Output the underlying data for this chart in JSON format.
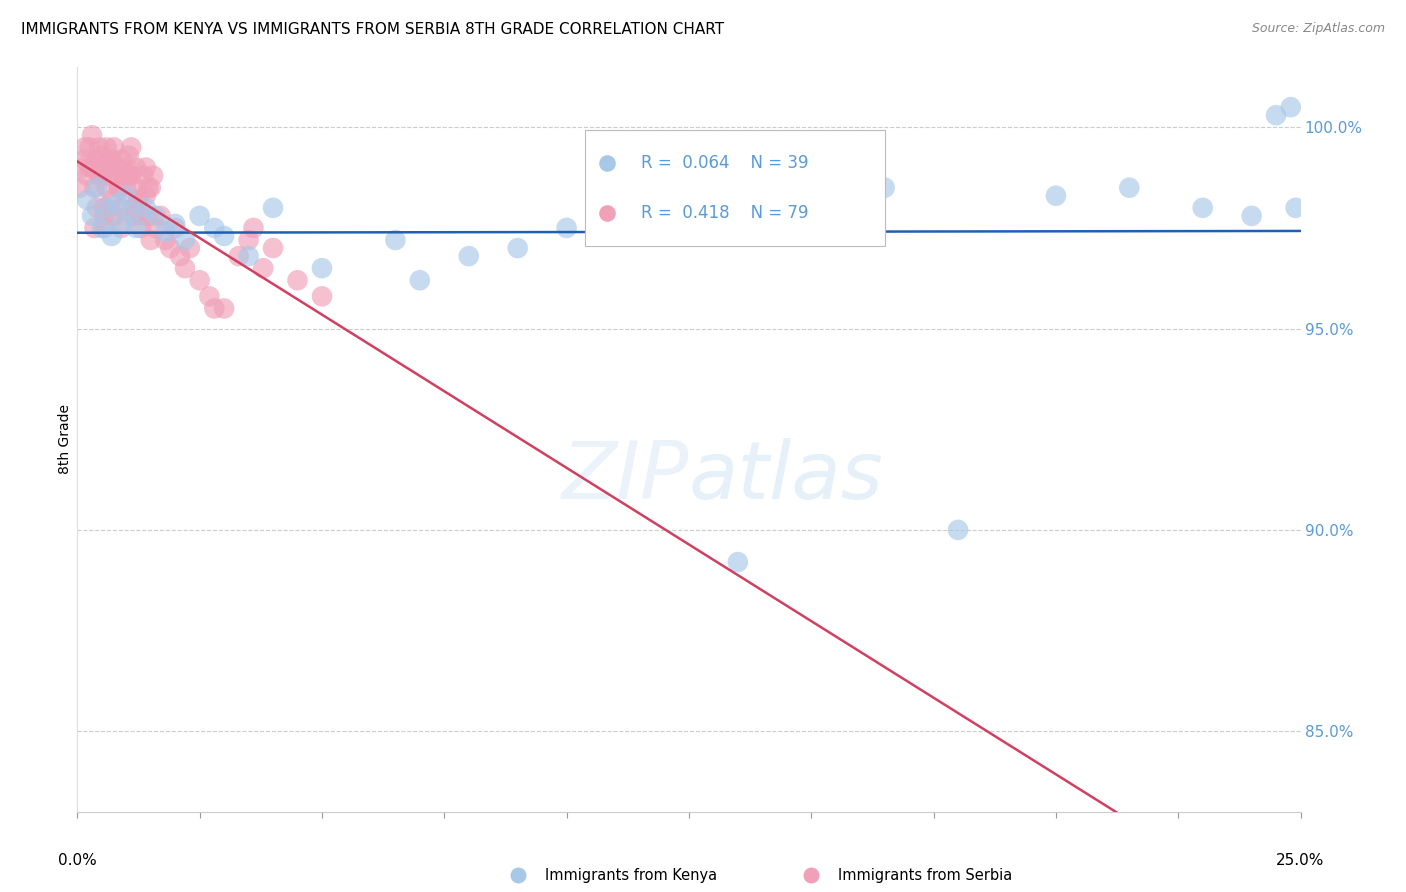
{
  "title": "IMMIGRANTS FROM KENYA VS IMMIGRANTS FROM SERBIA 8TH GRADE CORRELATION CHART",
  "source": "Source: ZipAtlas.com",
  "ylabel": "8th Grade",
  "yticks": [
    85.0,
    90.0,
    95.0,
    100.0
  ],
  "ytick_labels": [
    "85.0%",
    "90.0%",
    "95.0%",
    "100.0%"
  ],
  "xlim": [
    0.0,
    25.0
  ],
  "ylim": [
    83.0,
    101.5
  ],
  "legend_kenya_r": "0.064",
  "legend_kenya_n": "39",
  "legend_serbia_r": "0.418",
  "legend_serbia_n": "79",
  "kenya_color": "#a8c8e8",
  "serbia_color": "#f0a0b8",
  "kenya_line_color": "#2060b0",
  "serbia_line_color": "#d04060",
  "kenya_scatter_x": [
    0.2,
    0.3,
    0.4,
    0.5,
    0.6,
    0.7,
    0.8,
    0.9,
    1.0,
    1.1,
    1.2,
    1.4,
    1.6,
    1.8,
    2.0,
    2.2,
    2.5,
    2.8,
    3.0,
    3.5,
    4.0,
    5.0,
    6.5,
    8.0,
    10.0,
    12.0,
    13.5,
    15.0,
    16.5,
    18.0,
    20.0,
    21.5,
    23.0,
    24.0,
    24.5,
    24.8,
    24.9,
    7.0,
    9.0
  ],
  "kenya_scatter_y": [
    98.2,
    97.8,
    98.5,
    97.5,
    98.0,
    97.3,
    98.1,
    97.6,
    98.3,
    97.9,
    97.5,
    98.0,
    97.8,
    97.4,
    97.6,
    97.2,
    97.8,
    97.5,
    97.3,
    96.8,
    98.0,
    96.5,
    97.2,
    96.8,
    97.5,
    97.8,
    89.2,
    98.2,
    98.5,
    90.0,
    98.3,
    98.5,
    98.0,
    97.8,
    100.3,
    100.5,
    98.0,
    96.2,
    97.0
  ],
  "serbia_scatter_x": [
    0.05,
    0.1,
    0.15,
    0.2,
    0.25,
    0.3,
    0.3,
    0.35,
    0.4,
    0.4,
    0.45,
    0.5,
    0.5,
    0.55,
    0.6,
    0.6,
    0.65,
    0.7,
    0.7,
    0.75,
    0.8,
    0.8,
    0.85,
    0.9,
    0.9,
    0.95,
    1.0,
    1.0,
    1.05,
    1.1,
    1.1,
    1.15,
    1.2,
    1.2,
    1.25,
    1.3,
    1.35,
    1.4,
    1.4,
    1.45,
    1.5,
    1.5,
    1.55,
    1.6,
    1.7,
    1.8,
    1.9,
    2.0,
    2.1,
    2.2,
    2.3,
    2.5,
    2.7,
    3.0,
    3.3,
    3.6,
    3.8,
    4.0,
    4.5,
    5.0,
    0.25,
    0.45,
    0.65,
    0.85,
    1.05,
    1.25,
    1.45,
    0.35,
    0.55,
    0.75,
    0.15,
    0.55,
    1.15,
    0.4,
    0.6,
    0.9,
    1.3,
    2.8,
    3.5
  ],
  "serbia_scatter_y": [
    98.5,
    99.0,
    99.2,
    98.8,
    99.5,
    99.0,
    99.8,
    98.5,
    99.2,
    98.0,
    99.5,
    98.8,
    99.3,
    97.8,
    99.5,
    98.5,
    99.0,
    99.2,
    98.2,
    99.5,
    98.8,
    99.0,
    98.5,
    99.2,
    98.0,
    98.8,
    99.0,
    98.5,
    99.3,
    98.8,
    99.5,
    97.8,
    98.5,
    99.0,
    98.2,
    97.5,
    98.8,
    98.3,
    99.0,
    97.8,
    98.5,
    97.2,
    98.8,
    97.5,
    97.8,
    97.2,
    97.0,
    97.5,
    96.8,
    96.5,
    97.0,
    96.2,
    95.8,
    95.5,
    96.8,
    97.5,
    96.5,
    97.0,
    96.2,
    95.8,
    99.0,
    98.8,
    99.2,
    98.5,
    98.8,
    98.2,
    98.5,
    97.5,
    98.0,
    97.8,
    99.5,
    97.5,
    98.0,
    99.0,
    98.8,
    97.5,
    97.8,
    95.5,
    97.2
  ],
  "watermark_zip": "ZIP",
  "watermark_atlas": "atlas",
  "background_color": "#ffffff",
  "grid_color": "#cccccc",
  "right_axis_color": "#5b9bd5",
  "title_fontsize": 11,
  "label_fontsize": 10
}
